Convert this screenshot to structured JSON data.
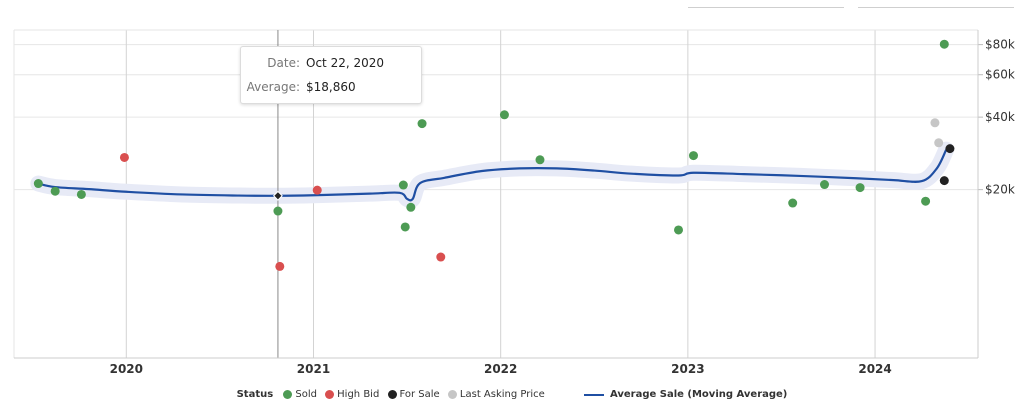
{
  "chart_data": {
    "type": "scatter",
    "title": "",
    "xlabel": "",
    "ylabel": "",
    "y_scale": "log",
    "ylim": [
      4000,
      92000
    ],
    "xlim": [
      2019.4,
      2024.55
    ],
    "grid": true,
    "x_ticks": [
      {
        "value": 2020,
        "label": "2020"
      },
      {
        "value": 2021,
        "label": "2021"
      },
      {
        "value": 2022,
        "label": "2022"
      },
      {
        "value": 2023,
        "label": "2023"
      },
      {
        "value": 2024,
        "label": "2024"
      }
    ],
    "y_ticks": [
      {
        "value": 20000,
        "label": "$20k"
      },
      {
        "value": 40000,
        "label": "$40k"
      },
      {
        "value": 60000,
        "label": "$60k"
      },
      {
        "value": 80000,
        "label": "$80k"
      }
    ],
    "series": [
      {
        "name": "Sold",
        "color": "#4d9b54",
        "points": [
          {
            "x": 2019.53,
            "y": 21200
          },
          {
            "x": 2019.62,
            "y": 19700
          },
          {
            "x": 2019.76,
            "y": 19100
          },
          {
            "x": 2020.81,
            "y": 16300
          },
          {
            "x": 2021.48,
            "y": 20900
          },
          {
            "x": 2021.49,
            "y": 14000
          },
          {
            "x": 2021.52,
            "y": 16900
          },
          {
            "x": 2021.58,
            "y": 37600
          },
          {
            "x": 2022.02,
            "y": 40900
          },
          {
            "x": 2022.21,
            "y": 26600
          },
          {
            "x": 2022.95,
            "y": 13600
          },
          {
            "x": 2023.03,
            "y": 27700
          },
          {
            "x": 2023.56,
            "y": 17600
          },
          {
            "x": 2023.73,
            "y": 21000
          },
          {
            "x": 2023.92,
            "y": 20400
          },
          {
            "x": 2024.27,
            "y": 17900
          },
          {
            "x": 2024.37,
            "y": 80300
          }
        ]
      },
      {
        "name": "High Bid",
        "color": "#d94f4f",
        "points": [
          {
            "x": 2019.99,
            "y": 27200
          },
          {
            "x": 2020.82,
            "y": 9600
          },
          {
            "x": 2021.02,
            "y": 19900
          },
          {
            "x": 2021.68,
            "y": 10500
          }
        ]
      },
      {
        "name": "For Sale",
        "color": "#222222",
        "points": [
          {
            "x": 2024.37,
            "y": 21800
          },
          {
            "x": 2024.4,
            "y": 29600
          }
        ]
      },
      {
        "name": "Last Asking Price",
        "color": "#c6c6c6",
        "points": [
          {
            "x": 2024.32,
            "y": 37900
          },
          {
            "x": 2024.34,
            "y": 31300
          }
        ]
      }
    ],
    "average_line": {
      "name": "Average Sale (Moving Average)",
      "color": "#1f4fa3",
      "band_color": "#e7eaf6",
      "points": [
        {
          "x": 2019.53,
          "y": 21200
        },
        {
          "x": 2019.62,
          "y": 20500
        },
        {
          "x": 2019.8,
          "y": 20100
        },
        {
          "x": 2020.0,
          "y": 19600
        },
        {
          "x": 2020.3,
          "y": 19100
        },
        {
          "x": 2020.6,
          "y": 18900
        },
        {
          "x": 2020.8,
          "y": 18860
        },
        {
          "x": 2021.0,
          "y": 18960
        },
        {
          "x": 2021.3,
          "y": 19250
        },
        {
          "x": 2021.46,
          "y": 19400
        },
        {
          "x": 2021.5,
          "y": 18300
        },
        {
          "x": 2021.53,
          "y": 18300
        },
        {
          "x": 2021.57,
          "y": 21300
        },
        {
          "x": 2021.7,
          "y": 22400
        },
        {
          "x": 2021.9,
          "y": 23900
        },
        {
          "x": 2022.1,
          "y": 24500
        },
        {
          "x": 2022.3,
          "y": 24500
        },
        {
          "x": 2022.5,
          "y": 24000
        },
        {
          "x": 2022.7,
          "y": 23300
        },
        {
          "x": 2022.95,
          "y": 22900
        },
        {
          "x": 2023.03,
          "y": 23500
        },
        {
          "x": 2023.3,
          "y": 23200
        },
        {
          "x": 2023.6,
          "y": 22800
        },
        {
          "x": 2023.9,
          "y": 22300
        },
        {
          "x": 2024.1,
          "y": 21900
        },
        {
          "x": 2024.25,
          "y": 21700
        },
        {
          "x": 2024.33,
          "y": 24500
        },
        {
          "x": 2024.38,
          "y": 29300
        }
      ]
    },
    "hover": {
      "x": 2020.81,
      "y": 18860
    },
    "legend": {
      "position": "bottom",
      "title": "Status",
      "entries": [
        {
          "label": "Sold",
          "color": "#4d9b54",
          "kind": "dot"
        },
        {
          "label": "High Bid",
          "color": "#d94f4f",
          "kind": "dot"
        },
        {
          "label": "For Sale",
          "color": "#222222",
          "kind": "dot"
        },
        {
          "label": "Last Asking Price",
          "color": "#c6c6c6",
          "kind": "dot"
        },
        {
          "label": "Average Sale (Moving Average)",
          "color": "#1f4fa3",
          "kind": "line"
        }
      ]
    },
    "tooltip": {
      "date_label": "Date:",
      "date_value": "Oct 22, 2020",
      "average_label": "Average:",
      "average_value": "$18,860"
    }
  }
}
